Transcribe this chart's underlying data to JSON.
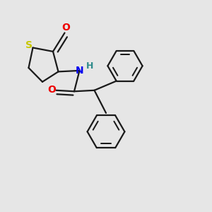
{
  "bg_color": "#e6e6e6",
  "bond_color": "#1a1a1a",
  "S_color": "#c8c800",
  "N_color": "#0000ee",
  "O_color": "#ee0000",
  "H_color": "#2e8b8b",
  "bond_width": 1.6,
  "figsize": [
    3.0,
    3.0
  ],
  "dpi": 100,
  "S_label": "S",
  "N_label": "N",
  "H_label": "H",
  "O_label": "O"
}
